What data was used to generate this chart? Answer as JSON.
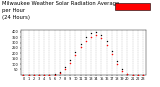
{
  "title": "Milwaukee Weather Solar Radiation Average  per Hour  (24 Hours)",
  "title_line1": "Milwaukee Weather Solar Radiation Average",
  "title_line2": "per Hour",
  "title_line3": "(24 Hours)",
  "hours": [
    0,
    1,
    2,
    3,
    4,
    5,
    6,
    7,
    8,
    9,
    10,
    11,
    12,
    13,
    14,
    15,
    16,
    17,
    18,
    19,
    20,
    21,
    22,
    23
  ],
  "solar_avg": [
    0,
    0,
    0,
    0,
    0,
    0,
    2,
    18,
    55,
    110,
    180,
    255,
    315,
    355,
    370,
    340,
    275,
    195,
    105,
    40,
    8,
    1,
    0,
    0
  ],
  "solar_max": [
    0,
    0,
    0,
    0,
    0,
    0,
    5,
    25,
    70,
    140,
    210,
    290,
    350,
    390,
    400,
    370,
    310,
    220,
    130,
    55,
    12,
    2,
    0,
    0
  ],
  "dot_color": "#ff0000",
  "dot2_color": "#000000",
  "bg_color": "#ffffff",
  "grid_color": "#888888",
  "ylim": [
    0,
    420
  ],
  "yticks": [
    50,
    100,
    150,
    200,
    250,
    300,
    350,
    400
  ],
  "xticks": [
    0,
    1,
    2,
    3,
    4,
    5,
    6,
    7,
    8,
    9,
    10,
    11,
    12,
    13,
    14,
    15,
    16,
    17,
    18,
    19,
    20,
    21,
    22,
    23
  ],
  "legend_box_color": "#ff0000",
  "title_fontsize": 3.8,
  "tick_fontsize": 2.5
}
